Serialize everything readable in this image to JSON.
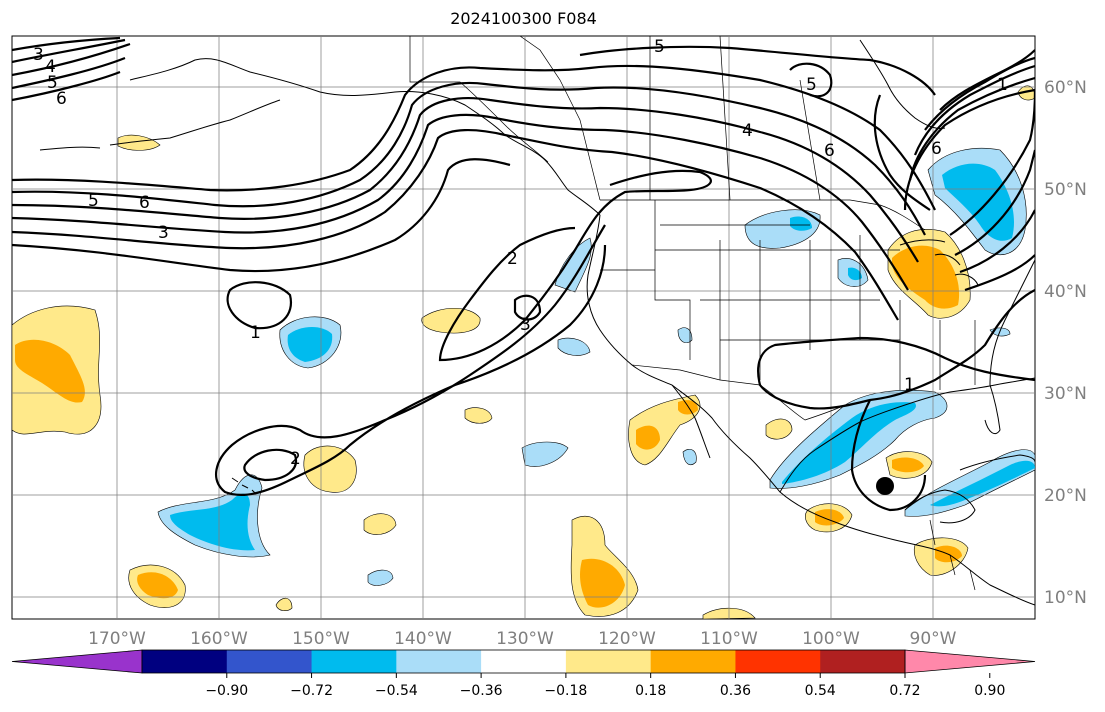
{
  "title": "2024100300 F084",
  "longitude_labels": [
    "170°W",
    "160°W",
    "150°W",
    "140°W",
    "130°W",
    "120°W",
    "110°W",
    "100°W",
    "90°W"
  ],
  "latitude_labels": [
    "60°N",
    "50°N",
    "40°N",
    "30°N",
    "20°N",
    "10°N"
  ],
  "colorbar": {
    "tick_labels": [
      "−0.90",
      "−0.72",
      "−0.54",
      "−0.36",
      "−0.18",
      "0.18",
      "0.36",
      "0.54",
      "0.72",
      "0.90"
    ],
    "colors": [
      "#9933cc",
      "#000080",
      "#3355cc",
      "#00bbee",
      "#aaddf8",
      "#ffffff",
      "#ffe98a",
      "#ffaa00",
      "#ff3300",
      "#b02020",
      "#ff88aa"
    ]
  },
  "contour_labels": [
    "3",
    "4",
    "5",
    "6",
    "5",
    "6",
    "3",
    "1",
    "2",
    "3",
    "2",
    "5",
    "4",
    "6",
    "5",
    "6",
    "1",
    "1"
  ],
  "marker": {
    "label": "black-dot"
  },
  "colors": {
    "grid": "#808080",
    "land_lines": "#000000",
    "text": "#000000",
    "axis_text": "#7f7f7f"
  }
}
